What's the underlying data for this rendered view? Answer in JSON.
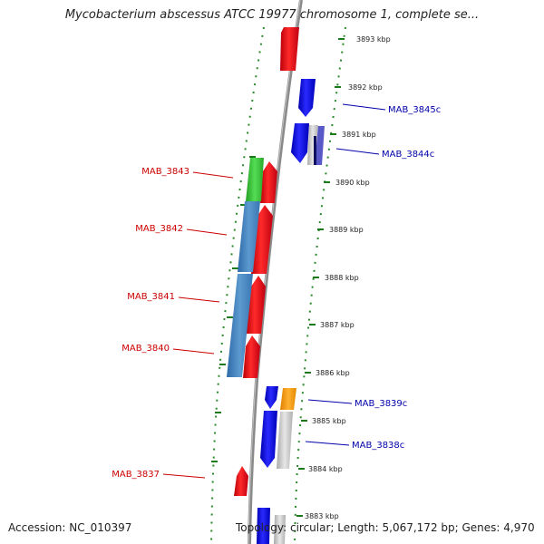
{
  "title": "Mycobacterium abscessus ATCC 19977 chromosome 1, complete se...",
  "accession": "Accession: NC_010397",
  "topology": "Topology: circular; Length: 5,067,172 bp; Genes: 4,970",
  "colors": {
    "forward_cds": "#e8141e",
    "reverse_cds": "#1414ee",
    "label_left": "#cc0000",
    "label_right": "#0000aa",
    "backbone": "#8a8a8a",
    "tick_dots": "#2a8a2a",
    "green_feature": "#3ec43e",
    "steel_feature": "#4a88c0",
    "orange_feature": "#f59a10",
    "grey_feature": "#c8c8c8",
    "purple_feature": "#6060c8"
  },
  "kbp_ticks": [
    "3893 kbp",
    "3892 kbp",
    "3891 kbp",
    "3890 kbp",
    "3889 kbp",
    "3888 kbp",
    "3887 kbp",
    "3886 kbp",
    "3885 kbp",
    "3884 kbp",
    "3883 kbp"
  ],
  "gene_labels": {
    "left": [
      "MAB_3843",
      "MAB_3842",
      "MAB_3841",
      "MAB_3840",
      "MAB_3837"
    ],
    "right": [
      "MAB_3845c",
      "MAB_3844c",
      "MAB_3839c",
      "MAB_3838c"
    ]
  }
}
